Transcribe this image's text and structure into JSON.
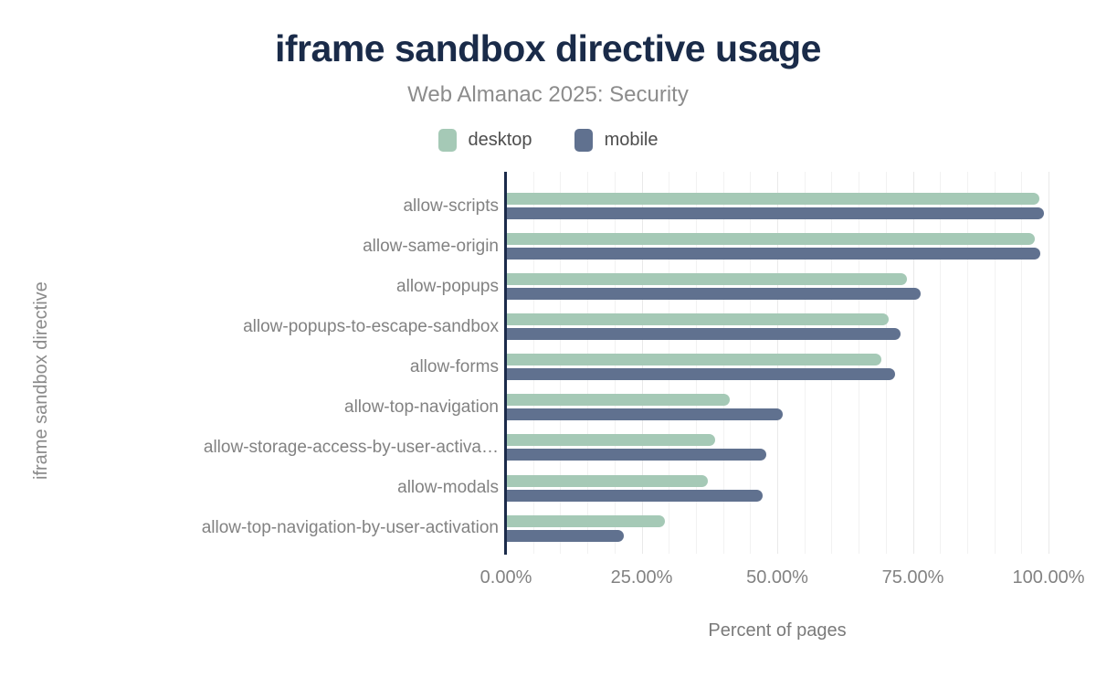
{
  "header": {
    "title": "iframe sandbox directive usage",
    "subtitle": "Web Almanac 2025: Security"
  },
  "colors": {
    "title": "#1a2b49",
    "axis_line": "#1b2b4a",
    "desktop": "#a5c9b6",
    "mobile": "#60718f",
    "muted_text": "#828282",
    "gridline": "#f2f2f2"
  },
  "chart_data": {
    "type": "bar",
    "orientation": "horizontal",
    "title": "iframe sandbox directive usage",
    "subtitle": "Web Almanac 2025: Security",
    "xlabel": "Percent of pages",
    "ylabel": "iframe sandbox directive",
    "xlim": [
      0,
      100
    ],
    "x_ticks": [
      "0.00%",
      "25.00%",
      "50.00%",
      "75.00%",
      "100.00%"
    ],
    "x_tick_values": [
      0,
      25,
      50,
      75,
      100
    ],
    "minor_tick_step_percent": 5,
    "grid": true,
    "legend_position": "top",
    "categories": [
      "allow-scripts",
      "allow-same-origin",
      "allow-popups",
      "allow-popups-to-escape-sandbox",
      "allow-forms",
      "allow-top-navigation",
      "allow-storage-access-by-user-activa…",
      "allow-modals",
      "allow-top-navigation-by-user-activation"
    ],
    "series": [
      {
        "name": "desktop",
        "color": "#a5c9b6",
        "values": [
          98.1,
          97.3,
          73.7,
          70.3,
          69.0,
          41.0,
          38.4,
          37.0,
          29.1
        ]
      },
      {
        "name": "mobile",
        "color": "#60718f",
        "values": [
          99.0,
          98.3,
          76.2,
          72.6,
          71.5,
          50.9,
          47.8,
          47.1,
          21.5
        ]
      }
    ]
  }
}
